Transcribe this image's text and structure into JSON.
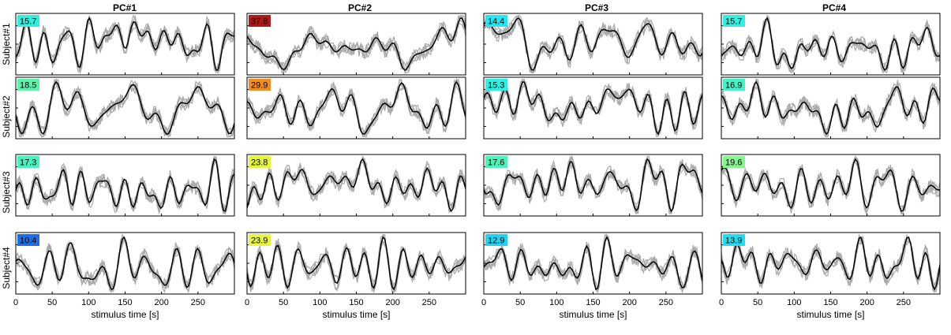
{
  "chart_data": {
    "type": "line",
    "layout": "small-multiples grid, 4 rows x 4 columns",
    "column_titles": [
      "PC#1",
      "PC#2",
      "PC#3",
      "PC#4"
    ],
    "row_labels": [
      "Subject#1",
      "Subject#2",
      "Subject#3",
      "Subject#4"
    ],
    "xlabel": "stimulus time [s]",
    "xlim": [
      0,
      300
    ],
    "xticks": [
      0,
      50,
      100,
      150,
      200,
      250
    ],
    "y_tick_labels_shown": false,
    "series_styles": {
      "individual_runs": {
        "color": "#a9a9a9",
        "count_per_panel": 5
      },
      "mean": {
        "color": "#000000"
      }
    },
    "colorscale_note": "badge fill color encodes the printed value (blue=low, red=high)",
    "colors": {
      "badge_low": "#1e6fe6",
      "badge_mid": "#6ef2a0",
      "badge_high": "#b01818"
    },
    "panels": [
      {
        "row": 0,
        "col": 0,
        "value": "15.7",
        "badge_color": "#2ff0e0"
      },
      {
        "row": 0,
        "col": 1,
        "value": "37.8",
        "badge_color": "#b01818"
      },
      {
        "row": 0,
        "col": 2,
        "value": "14.4",
        "badge_color": "#22e6f2"
      },
      {
        "row": 0,
        "col": 3,
        "value": "15.7",
        "badge_color": "#2ff0e0"
      },
      {
        "row": 1,
        "col": 0,
        "value": "18.5",
        "badge_color": "#5cf2aa"
      },
      {
        "row": 1,
        "col": 1,
        "value": "29.9",
        "badge_color": "#f58a1e"
      },
      {
        "row": 1,
        "col": 2,
        "value": "15.3",
        "badge_color": "#2cf0e2"
      },
      {
        "row": 1,
        "col": 3,
        "value": "16.9",
        "badge_color": "#42f2c4"
      },
      {
        "row": 2,
        "col": 0,
        "value": "17.3",
        "badge_color": "#48f2bc"
      },
      {
        "row": 2,
        "col": 1,
        "value": "23.8",
        "badge_color": "#e4f53a"
      },
      {
        "row": 2,
        "col": 2,
        "value": "17.6",
        "badge_color": "#4cf2b6"
      },
      {
        "row": 2,
        "col": 3,
        "value": "19.6",
        "badge_color": "#86f58c"
      },
      {
        "row": 3,
        "col": 0,
        "value": "10.4",
        "badge_color": "#1e6fe6"
      },
      {
        "row": 3,
        "col": 1,
        "value": "23.9",
        "badge_color": "#e8f53a"
      },
      {
        "row": 3,
        "col": 2,
        "value": "12.9",
        "badge_color": "#1ed2f2"
      },
      {
        "row": 3,
        "col": 3,
        "value": "13.9",
        "badge_color": "#20def2"
      }
    ]
  }
}
